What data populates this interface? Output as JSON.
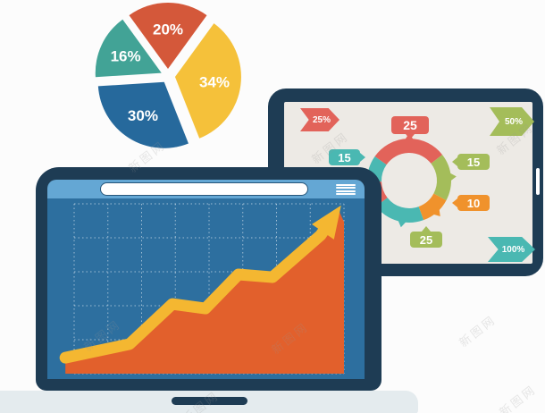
{
  "watermark": {
    "text": "新图网"
  },
  "palette": {
    "pie_red": "#d4583a",
    "pie_yellow": "#f5c13a",
    "pie_blue": "#26699c",
    "pie_teal": "#42a396",
    "navy_bezel": "#1e3c54",
    "topbar_blue": "#64a7d4",
    "screen_blue": "#2d6f9f",
    "area_orange": "#e2602c",
    "arrow_yellow": "#f4b731",
    "donut_red": "#e2635a",
    "donut_green": "#a4bd5a",
    "donut_orange": "#f0922c",
    "donut_teal": "#4ab8b2",
    "tablet_screen": "#edeae5",
    "base_gray": "#e4ebee"
  },
  "chart_data": [
    {
      "type": "pie",
      "title": "exploded pie chart",
      "slices": [
        {
          "label": "20%",
          "value": 20,
          "color": "#d4583a"
        },
        {
          "label": "34%",
          "value": 34,
          "color": "#f5c13a"
        },
        {
          "label": "30%",
          "value": 30,
          "color": "#26699c"
        },
        {
          "label": "16%",
          "value": 16,
          "color": "#42a396"
        }
      ],
      "start_angle_deg": -36,
      "exploded": true,
      "label_color": "#ffffff"
    },
    {
      "type": "pie",
      "title": "segmented ring chart on tablet (donut)",
      "start_angle_deg": -55,
      "segments": [
        {
          "sweep_deg": 107,
          "color": "#e2635a",
          "pointer_angle": 0
        },
        {
          "sweep_deg": 66,
          "color": "#a4bd5a",
          "pointer_angle": 85
        },
        {
          "sweep_deg": 42,
          "color": "#f0922c",
          "pointer_angle": 139
        },
        {
          "sweep_deg": 72,
          "color": "#4ab8b2",
          "pointer_angle": 190
        },
        {
          "sweep_deg": 36,
          "color": "#e2635a"
        },
        {
          "sweep_deg": 37,
          "color": "#4ab8b2",
          "pointer_angle": 277
        }
      ]
    },
    {
      "type": "area",
      "title": "rising trend with arrow on laptop screen",
      "grid": {
        "cols": 8,
        "rows": 5
      },
      "series": [
        {
          "name": "trend",
          "x": [
            -0.26,
            1.64,
            2.91,
            3.89,
            4.87,
            5.88,
            7.31,
            7.87
          ],
          "y": [
            0.47,
            0.87,
            2.05,
            1.92,
            2.92,
            2.84,
            4.08,
            4.89
          ]
        }
      ],
      "line_color": "#f4b731",
      "fill_color": "#e2602c",
      "arrow": true
    }
  ],
  "tablet": {
    "callouts": [
      {
        "text": "25",
        "color": "#e2635a"
      },
      {
        "text": "15",
        "color": "#4ab8b2"
      },
      {
        "text": "15",
        "color": "#a4bd5a"
      },
      {
        "text": "10",
        "color": "#f0922c"
      },
      {
        "text": "25",
        "color": "#a4bd5a"
      }
    ],
    "chevrons": [
      {
        "text": "25%",
        "color": "#e2635a"
      },
      {
        "text": "50%",
        "color": "#a4bd5a"
      },
      {
        "text": "100%",
        "color": "#4ab8b2"
      }
    ]
  },
  "laptop": {
    "search_value": ""
  }
}
